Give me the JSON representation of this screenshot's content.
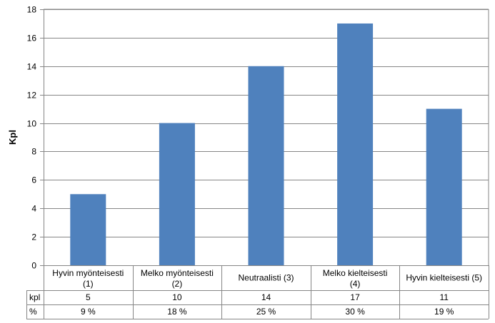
{
  "chart_data": {
    "type": "bar",
    "title": "",
    "xlabel": "",
    "ylabel": "Kpl",
    "ylim": [
      0,
      18
    ],
    "y_ticks": [
      0,
      2,
      4,
      6,
      8,
      10,
      12,
      14,
      16,
      18
    ],
    "grid": true,
    "legend": "none",
    "bar_color": "#4f81bd",
    "categories": [
      [
        "Hyvin myönteisesti",
        "(1)"
      ],
      [
        "Melko myönteisesti",
        "(2)"
      ],
      [
        "Neutraalisti (3)"
      ],
      [
        "Melko kielteisesti",
        "(4)"
      ],
      [
        "Hyvin kielteisesti (5)"
      ]
    ],
    "values": [
      5,
      10,
      14,
      17,
      11
    ],
    "table": {
      "rows": [
        {
          "header": "kpl",
          "cells": [
            "5",
            "10",
            "14",
            "17",
            "11"
          ]
        },
        {
          "header": "%",
          "cells": [
            "9 %",
            "18 %",
            "25 %",
            "30 %",
            "19 %"
          ]
        }
      ]
    }
  }
}
